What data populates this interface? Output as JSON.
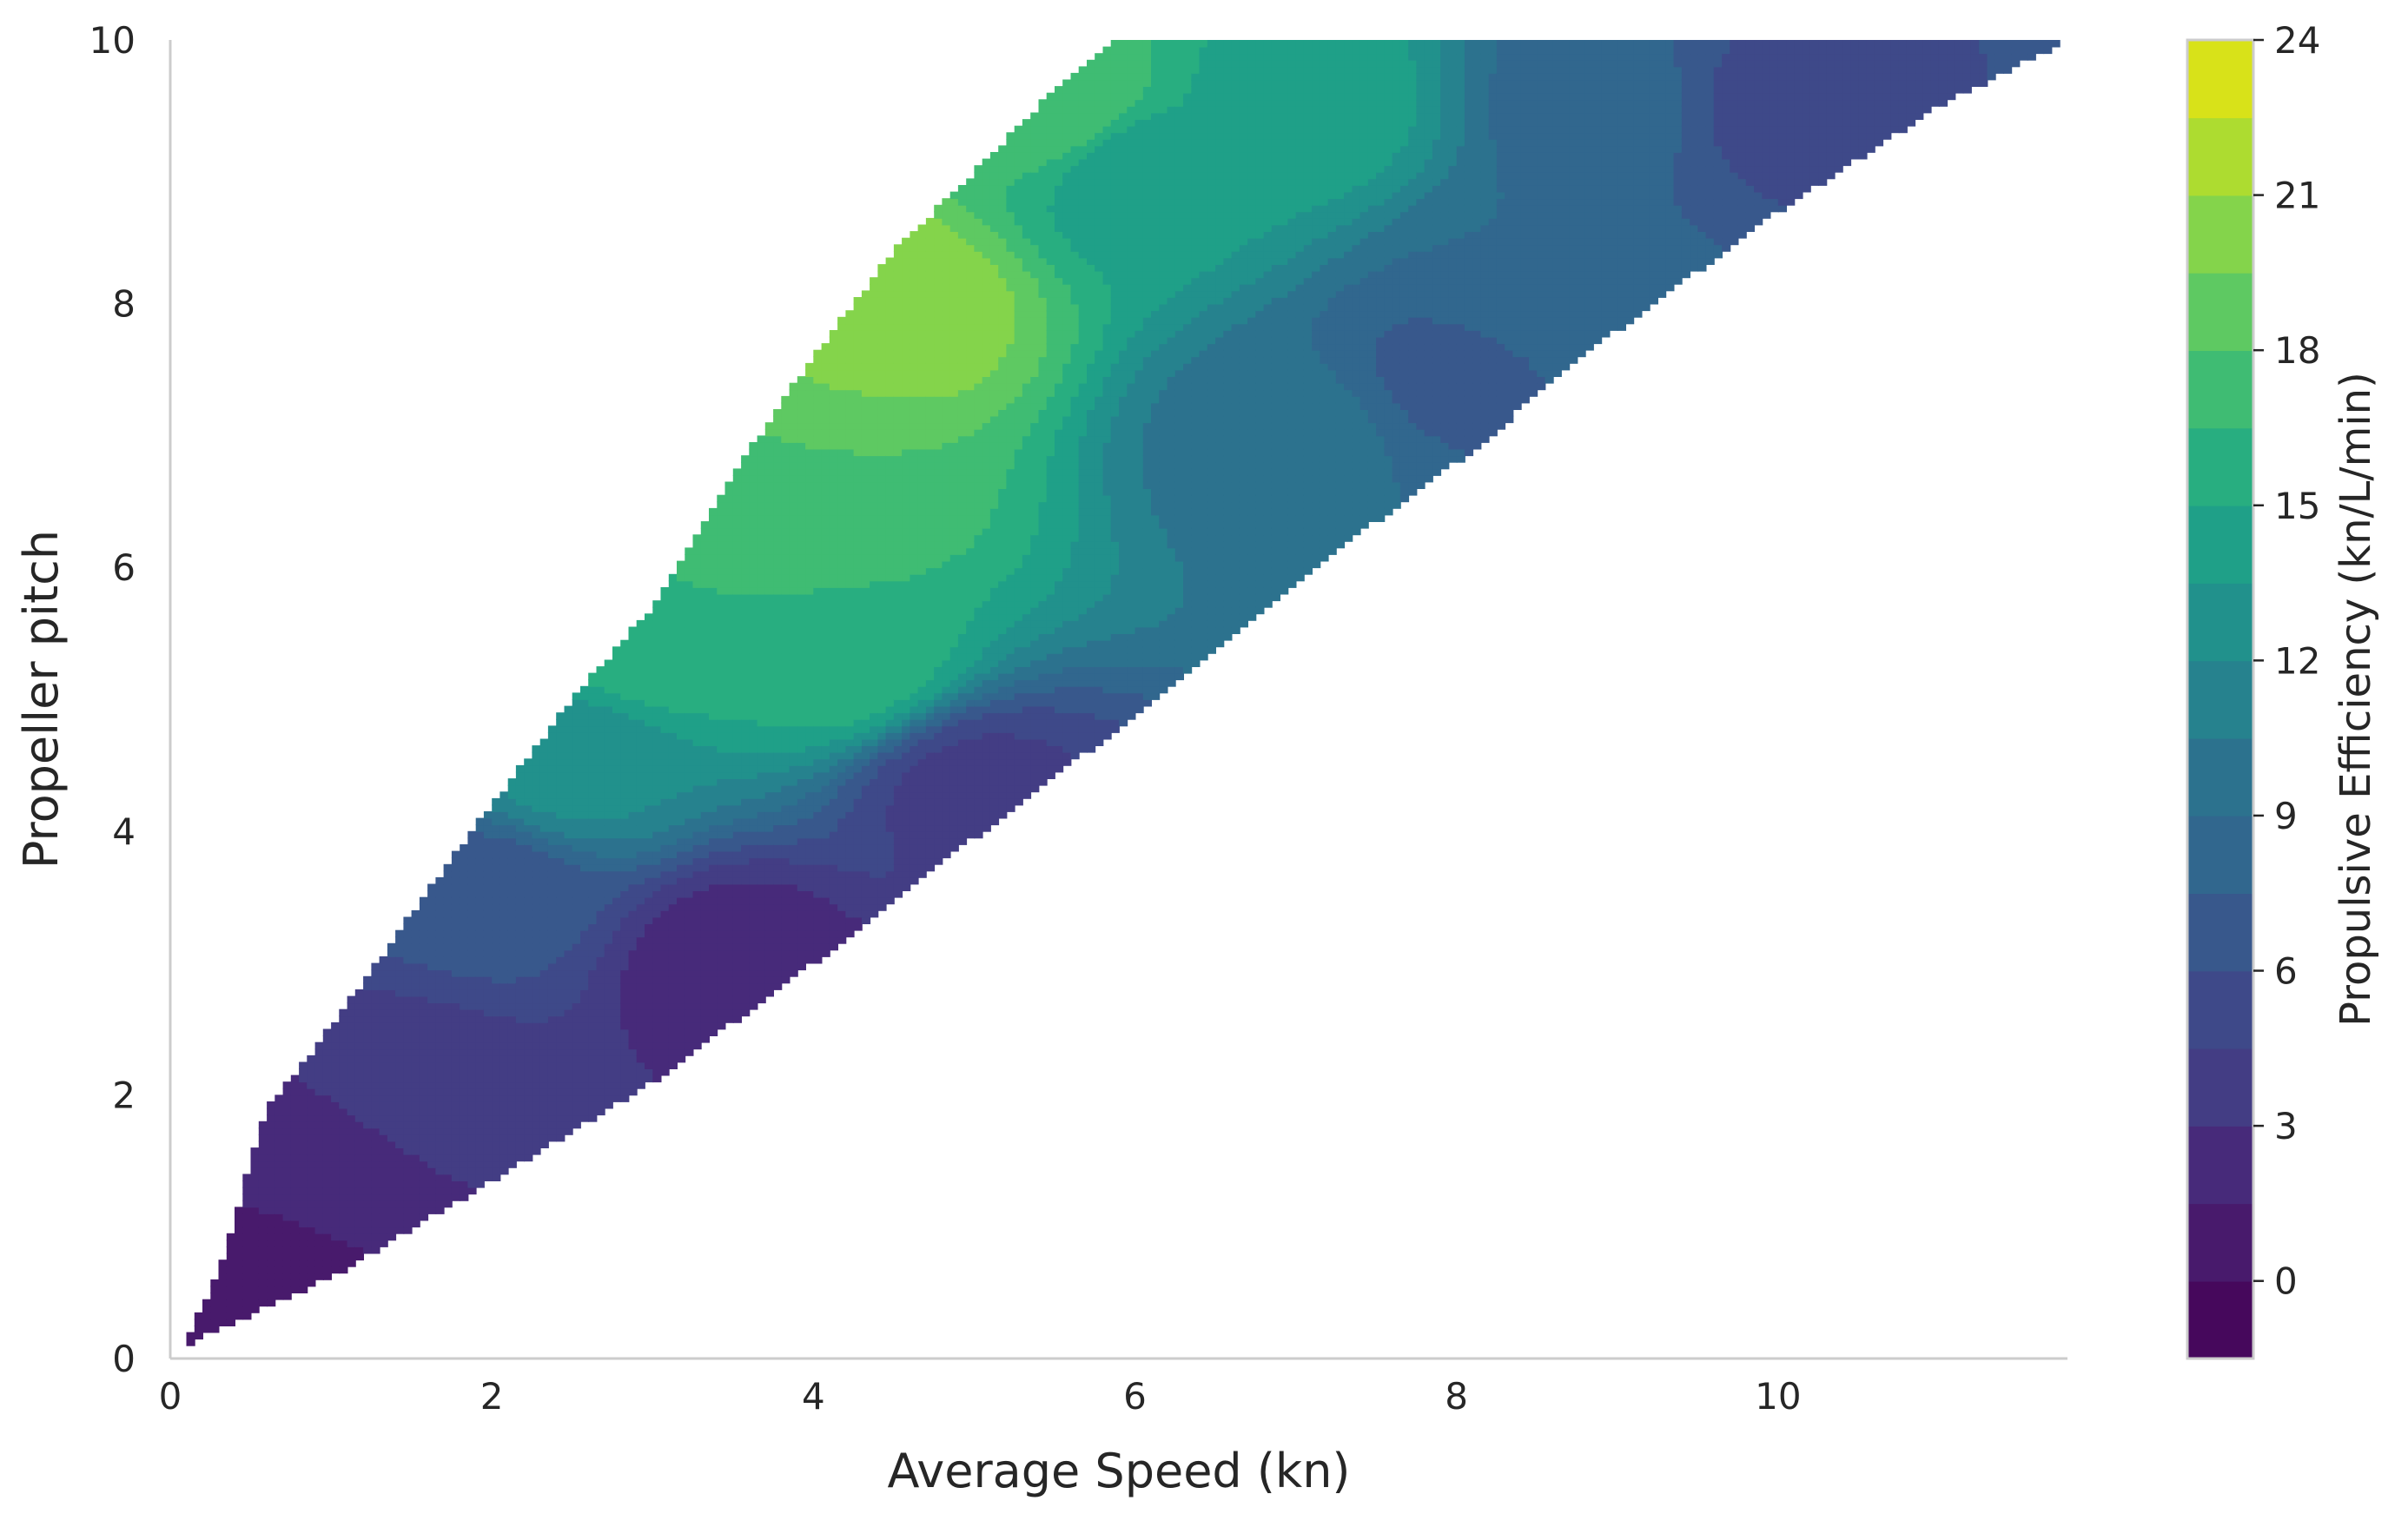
{
  "chart_data": {
    "type": "contour",
    "title": "",
    "xlabel": "Average Speed (kn)",
    "ylabel": "Propeller pitch",
    "xlim": [
      0,
      11.8
    ],
    "ylim": [
      0,
      10
    ],
    "x_ticks": [
      0,
      2,
      4,
      6,
      8,
      10
    ],
    "y_ticks": [
      0,
      2,
      4,
      6,
      8,
      10
    ],
    "grid": false,
    "colormap": "viridis",
    "colorbar": {
      "label": "Propulsive Efficiency (kn/L/min)",
      "ticks": [
        0,
        3,
        6,
        9,
        12,
        15,
        18,
        21,
        24
      ],
      "levels": [
        -1.5,
        0,
        1.5,
        3,
        4.5,
        6,
        7.5,
        9,
        10.5,
        12,
        13.5,
        15,
        16.5,
        18,
        19.5,
        21,
        22.5,
        24
      ],
      "range": [
        -1.5,
        24
      ],
      "colors": [
        "#46085c",
        "#481a6c",
        "#472a7a",
        "#433d84",
        "#3e4989",
        "#38588c",
        "#31678e",
        "#2c728e",
        "#26828e",
        "#21918c",
        "#1fa088",
        "#28ae80",
        "#3fbc73",
        "#5ec962",
        "#84d44b",
        "#addc30",
        "#d8e219"
      ]
    },
    "filled_region": {
      "upper_boundary": [
        [
          0.12,
          0.2
        ],
        [
          0.3,
          0.65
        ],
        [
          0.6,
          1.9
        ],
        [
          0.9,
          2.35
        ],
        [
          1.4,
          3.2
        ],
        [
          2.0,
          4.2
        ],
        [
          2.5,
          5.0
        ],
        [
          3.0,
          5.7
        ],
        [
          3.5,
          6.7
        ],
        [
          4.0,
          7.6
        ],
        [
          4.5,
          8.4
        ],
        [
          5.0,
          9.0
        ],
        [
          5.6,
          9.75
        ],
        [
          5.9,
          10.0
        ]
      ],
      "lower_boundary": [
        [
          0.12,
          0.12
        ],
        [
          1.0,
          0.62
        ],
        [
          2.0,
          1.35
        ],
        [
          3.0,
          2.1
        ],
        [
          4.0,
          3.0
        ],
        [
          5.0,
          3.95
        ],
        [
          5.7,
          4.6
        ],
        [
          7.0,
          5.9
        ],
        [
          8.0,
          6.8
        ],
        [
          9.0,
          7.8
        ],
        [
          10.0,
          8.7
        ],
        [
          11.0,
          9.5
        ],
        [
          11.8,
          10.0
        ]
      ]
    },
    "efficiency_samples": [
      {
        "x": 0.5,
        "y": 0.6,
        "value": 0.5
      },
      {
        "x": 1.0,
        "y": 1.5,
        "value": 2.5
      },
      {
        "x": 1.5,
        "y": 2.0,
        "value": 3.5
      },
      {
        "x": 2.0,
        "y": 3.5,
        "value": 6.5
      },
      {
        "x": 2.5,
        "y": 4.5,
        "value": 12.5
      },
      {
        "x": 3.0,
        "y": 5.5,
        "value": 16.5
      },
      {
        "x": 3.5,
        "y": 3.0,
        "value": 2.0
      },
      {
        "x": 4.0,
        "y": 6.5,
        "value": 18.0
      },
      {
        "x": 4.2,
        "y": 5.3,
        "value": 16.0
      },
      {
        "x": 4.5,
        "y": 8.0,
        "value": 20.5
      },
      {
        "x": 5.0,
        "y": 4.3,
        "value": 4.0
      },
      {
        "x": 5.5,
        "y": 9.5,
        "value": 18.0
      },
      {
        "x": 6.0,
        "y": 9.0,
        "value": 14.0
      },
      {
        "x": 7.0,
        "y": 7.0,
        "value": 9.5
      },
      {
        "x": 7.0,
        "y": 9.5,
        "value": 14.5
      },
      {
        "x": 8.0,
        "y": 7.5,
        "value": 7.0
      },
      {
        "x": 8.4,
        "y": 8.1,
        "value": 9.0
      },
      {
        "x": 9.0,
        "y": 9.5,
        "value": 8.0
      },
      {
        "x": 10.0,
        "y": 9.5,
        "value": 5.5
      }
    ]
  }
}
